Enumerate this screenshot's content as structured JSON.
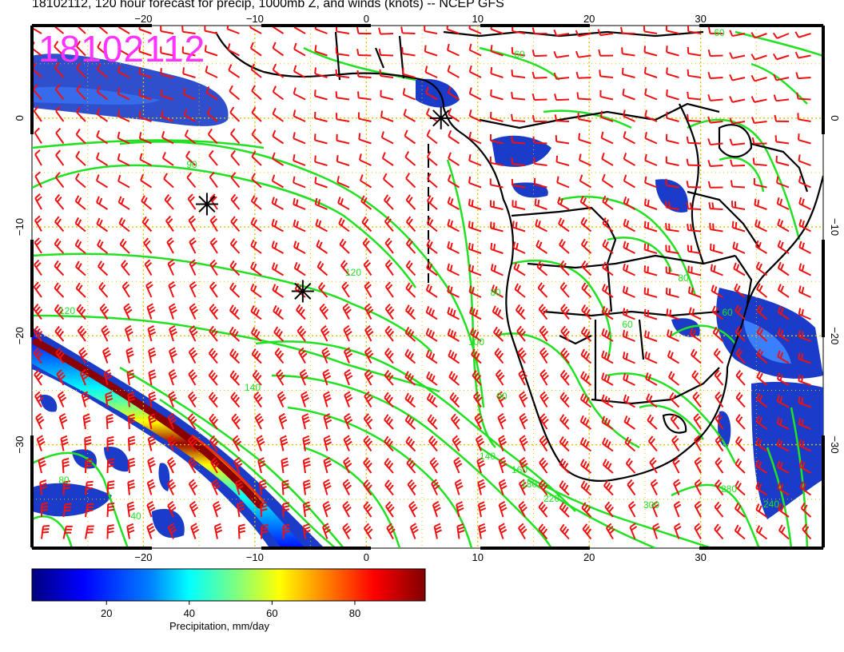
{
  "title": "18102112, 120 hour forecast for precip, 1000mb Z, and winds (knots) -- NCEP GFS",
  "stamp": "18102112",
  "axes": {
    "lon_ticks": [
      -20,
      -10,
      0,
      10,
      20,
      30
    ],
    "lon_labels": [
      "−20",
      "−10",
      "0",
      "10",
      "20",
      "30"
    ],
    "lat_ticks": [
      0,
      -10,
      -20,
      -30
    ],
    "lat_labels": [
      "0",
      "−10",
      "−20",
      "−30"
    ],
    "lon_range": [
      -30,
      41
    ],
    "lat_range": [
      -39.5,
      8.5
    ],
    "grid": true
  },
  "contour_labels": [
    "60",
    "60",
    "90",
    "120",
    "120",
    "100",
    "90",
    "140",
    "140",
    "160",
    "180",
    "220",
    "300",
    "280",
    "240",
    "80",
    "40",
    "60",
    "60",
    "80",
    "80"
  ],
  "markers": [
    {
      "name": "star",
      "lon": 6.7,
      "lat": 0.0
    },
    {
      "name": "star",
      "lon": -14.3,
      "lat": -7.9
    },
    {
      "name": "star",
      "lon": -5.7,
      "lat": -15.9
    }
  ],
  "colorbar": {
    "title": "Precipitation, mm/day",
    "tick_labels": [
      "20",
      "40",
      "60",
      "80"
    ],
    "ticks": [
      20,
      40,
      60,
      80
    ],
    "range": [
      2,
      97
    ],
    "colors": [
      "#00007f",
      "#0000ff",
      "#007fff",
      "#00ffff",
      "#7fff7f",
      "#ffff00",
      "#ff7f00",
      "#ff0000",
      "#7f0000"
    ]
  },
  "colors": {
    "contour": "#22e022",
    "barb": "#ee1111",
    "coast": "#000000",
    "grid": "#e0c000",
    "stamp": "#ff33ff"
  }
}
